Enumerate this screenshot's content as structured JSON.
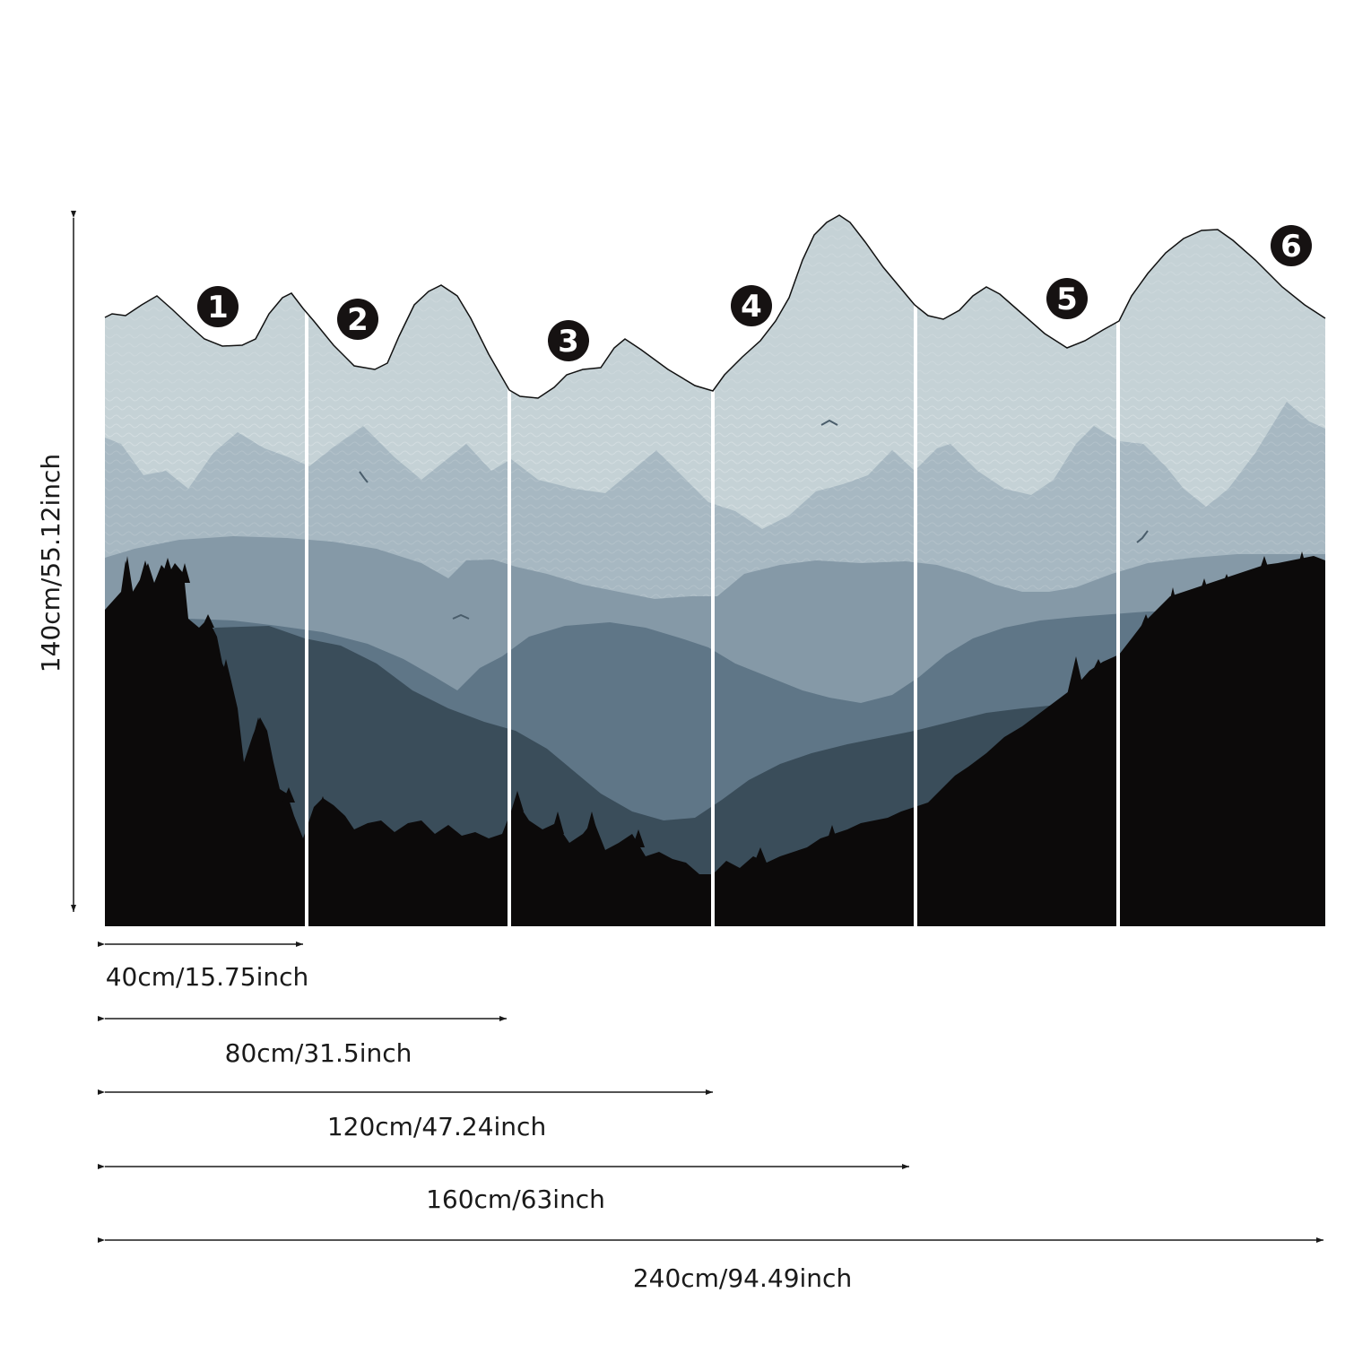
{
  "panels": [
    {
      "number": "1"
    },
    {
      "number": "2"
    },
    {
      "number": "3"
    },
    {
      "number": "4"
    },
    {
      "number": "5"
    },
    {
      "number": "6"
    }
  ],
  "height_label": "140cm/55.12inch",
  "width_labels": [
    "40cm/15.75inch",
    "80cm/31.5inch",
    "120cm/47.24inch",
    "160cm/63inch",
    "240cm/94.49inch"
  ],
  "colors": {
    "sky": "#c5d2d6",
    "far_range": "#a7b8c2",
    "mid_range": "#8599a7",
    "near_range": "#5f7687",
    "hill": "#3a4d5a",
    "forest": "#0c0a0a",
    "badge": "#161212"
  }
}
